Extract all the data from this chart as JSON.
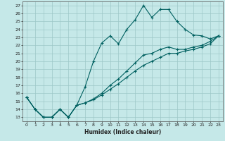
{
  "xlabel": "Humidex (Indice chaleur)",
  "ylabel": "",
  "xlim": [
    -0.5,
    23.5
  ],
  "ylim": [
    12.5,
    27.5
  ],
  "xticks": [
    0,
    1,
    2,
    3,
    4,
    5,
    6,
    7,
    8,
    9,
    10,
    11,
    12,
    13,
    14,
    15,
    16,
    17,
    18,
    19,
    20,
    21,
    22,
    23
  ],
  "yticks": [
    13,
    14,
    15,
    16,
    17,
    18,
    19,
    20,
    21,
    22,
    23,
    24,
    25,
    26,
    27
  ],
  "background_color": "#c5e8e8",
  "grid_color": "#9dc8c8",
  "line_color": "#006060",
  "line1_x": [
    0,
    1,
    2,
    3,
    4,
    5,
    6,
    7,
    8,
    9,
    10,
    11,
    12,
    13,
    14,
    15,
    16,
    17,
    18,
    19,
    20,
    21,
    22,
    23
  ],
  "line1_y": [
    15.5,
    14.0,
    13.0,
    13.0,
    14.0,
    13.0,
    14.5,
    16.8,
    20.0,
    22.3,
    23.2,
    22.2,
    24.0,
    25.2,
    27.0,
    25.5,
    26.5,
    26.5,
    25.0,
    24.0,
    23.3,
    23.2,
    22.8,
    23.2
  ],
  "line2_x": [
    0,
    1,
    2,
    3,
    4,
    5,
    6,
    7,
    8,
    9,
    10,
    11,
    12,
    13,
    14,
    15,
    16,
    17,
    18,
    19,
    20,
    21,
    22,
    23
  ],
  "line2_y": [
    15.5,
    14.0,
    13.0,
    13.0,
    14.0,
    13.0,
    14.5,
    14.8,
    15.3,
    16.0,
    17.0,
    17.8,
    18.8,
    19.8,
    20.8,
    21.0,
    21.5,
    21.8,
    21.5,
    21.5,
    21.8,
    22.0,
    22.5,
    23.2
  ],
  "line3_x": [
    0,
    1,
    2,
    3,
    4,
    5,
    6,
    7,
    8,
    9,
    10,
    11,
    12,
    13,
    14,
    15,
    16,
    17,
    18,
    19,
    20,
    21,
    22,
    23
  ],
  "line3_y": [
    15.5,
    14.0,
    13.0,
    13.0,
    14.0,
    13.0,
    14.5,
    14.8,
    15.2,
    15.8,
    16.5,
    17.2,
    18.0,
    18.8,
    19.5,
    20.0,
    20.5,
    21.0,
    21.0,
    21.3,
    21.5,
    21.8,
    22.2,
    23.2
  ]
}
